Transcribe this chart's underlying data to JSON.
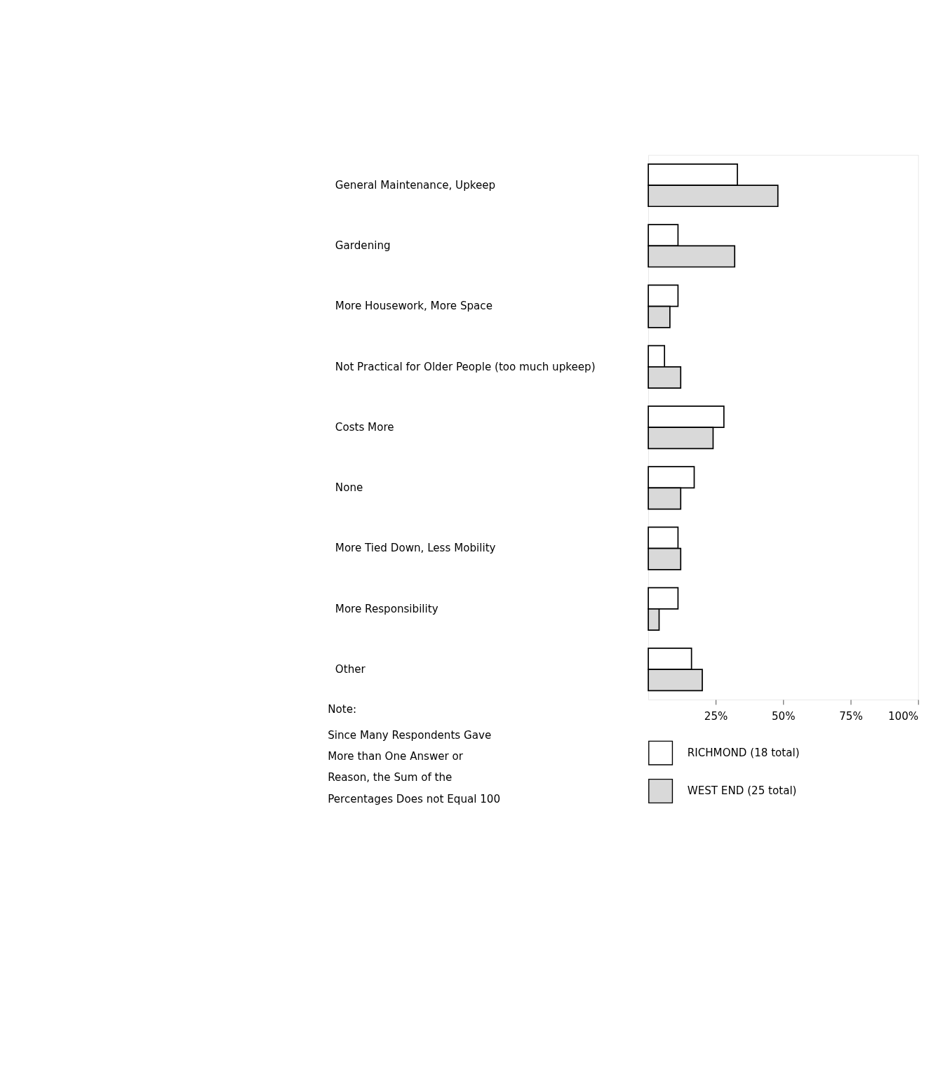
{
  "chart_data": {
    "type": "bar",
    "orientation": "horizontal",
    "categories": [
      "General Maintenance, Upkeep",
      "Gardening",
      "More Housework, More Space",
      "Not Practical for Older People (too much upkeep)",
      "Costs More",
      "None",
      "More Tied Down, Less Mobility",
      "More Responsibility",
      "Other"
    ],
    "series": [
      {
        "name": "RICHMOND (18 total)",
        "color": "#ffffff",
        "values": [
          33,
          11,
          11,
          6,
          28,
          17,
          11,
          11,
          16
        ]
      },
      {
        "name": "WEST END (25 total)",
        "color": "#d9d9d9",
        "values": [
          48,
          32,
          8,
          12,
          24,
          12,
          12,
          4,
          20
        ]
      }
    ],
    "xlim": [
      0,
      100
    ],
    "xticks": [
      {
        "value": 25,
        "label": "25%"
      },
      {
        "value": 50,
        "label": "50%"
      },
      {
        "value": 75,
        "label": "75%"
      },
      {
        "value": 100,
        "label": "100%"
      }
    ],
    "grid": false,
    "legend": "bottom",
    "annotations": [
      "Note:",
      "Since Many Respondents Gave More than One Answer or Reason, the Sum of the Percentages Does not Equal 100"
    ]
  }
}
